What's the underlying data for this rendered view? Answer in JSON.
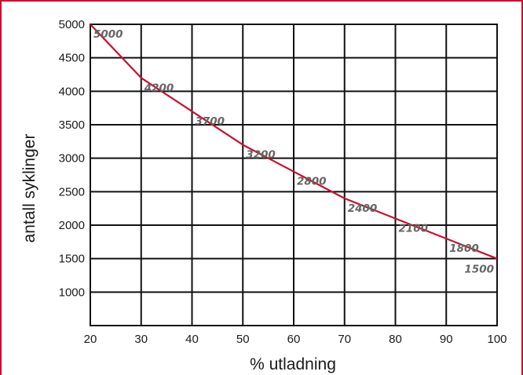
{
  "chart_data": {
    "type": "line",
    "title": "",
    "xlabel": "% utladning",
    "ylabel": "antall syklinger",
    "xlim": [
      20,
      100
    ],
    "ylim": [
      500,
      5000
    ],
    "x_ticks": [
      20,
      30,
      40,
      50,
      60,
      70,
      80,
      90,
      100
    ],
    "y_ticks": [
      1000,
      1500,
      2000,
      2500,
      3000,
      3500,
      4000,
      4500,
      5000
    ],
    "grid": true,
    "legend": "none",
    "series": [
      {
        "x": [
          20,
          30,
          40,
          50,
          60,
          70,
          80,
          90,
          100
        ],
        "y": [
          5000,
          4200,
          3700,
          3200,
          2800,
          2400,
          2100,
          1800,
          1500
        ],
        "labels": [
          "5000",
          "4200",
          "3700",
          "3200",
          "2800",
          "2400",
          "2100",
          "1800",
          "1500"
        ]
      }
    ],
    "colors": {
      "line": "#c8102e",
      "frame": "#c8102e",
      "grid": "#111111",
      "data_label": "#666666"
    }
  }
}
